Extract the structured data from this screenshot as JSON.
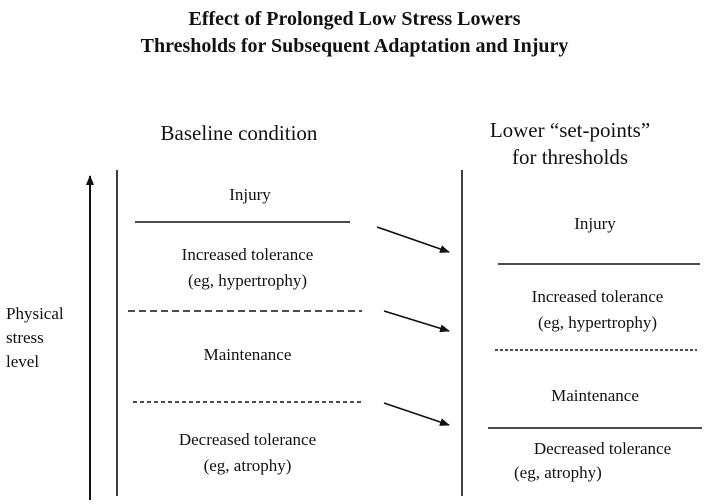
{
  "title": {
    "line1": "Effect of Prolonged Low Stress Lowers",
    "line2": "Thresholds for Subsequent Adaptation and Injury"
  },
  "y_axis": {
    "label_line1": "Physical",
    "label_line2": "stress",
    "label_line3": "level"
  },
  "baseline": {
    "heading": "Baseline condition",
    "injury": "Injury",
    "increased_line1": "Increased tolerance",
    "increased_line2": "(eg, hypertrophy)",
    "maintenance": "Maintenance",
    "decreased_line1": "Decreased tolerance",
    "decreased_line2": "(eg, atrophy)"
  },
  "lowered": {
    "heading_line1": "Lower “set-points”",
    "heading_line2": "for thresholds",
    "injury": "Injury",
    "increased_line1": "Increased tolerance",
    "increased_line2": "(eg, hypertrophy)",
    "maintenance": "Maintenance",
    "decreased_line1": "Decreased tolerance",
    "decreased_line2": "(eg, atrophy)"
  }
}
